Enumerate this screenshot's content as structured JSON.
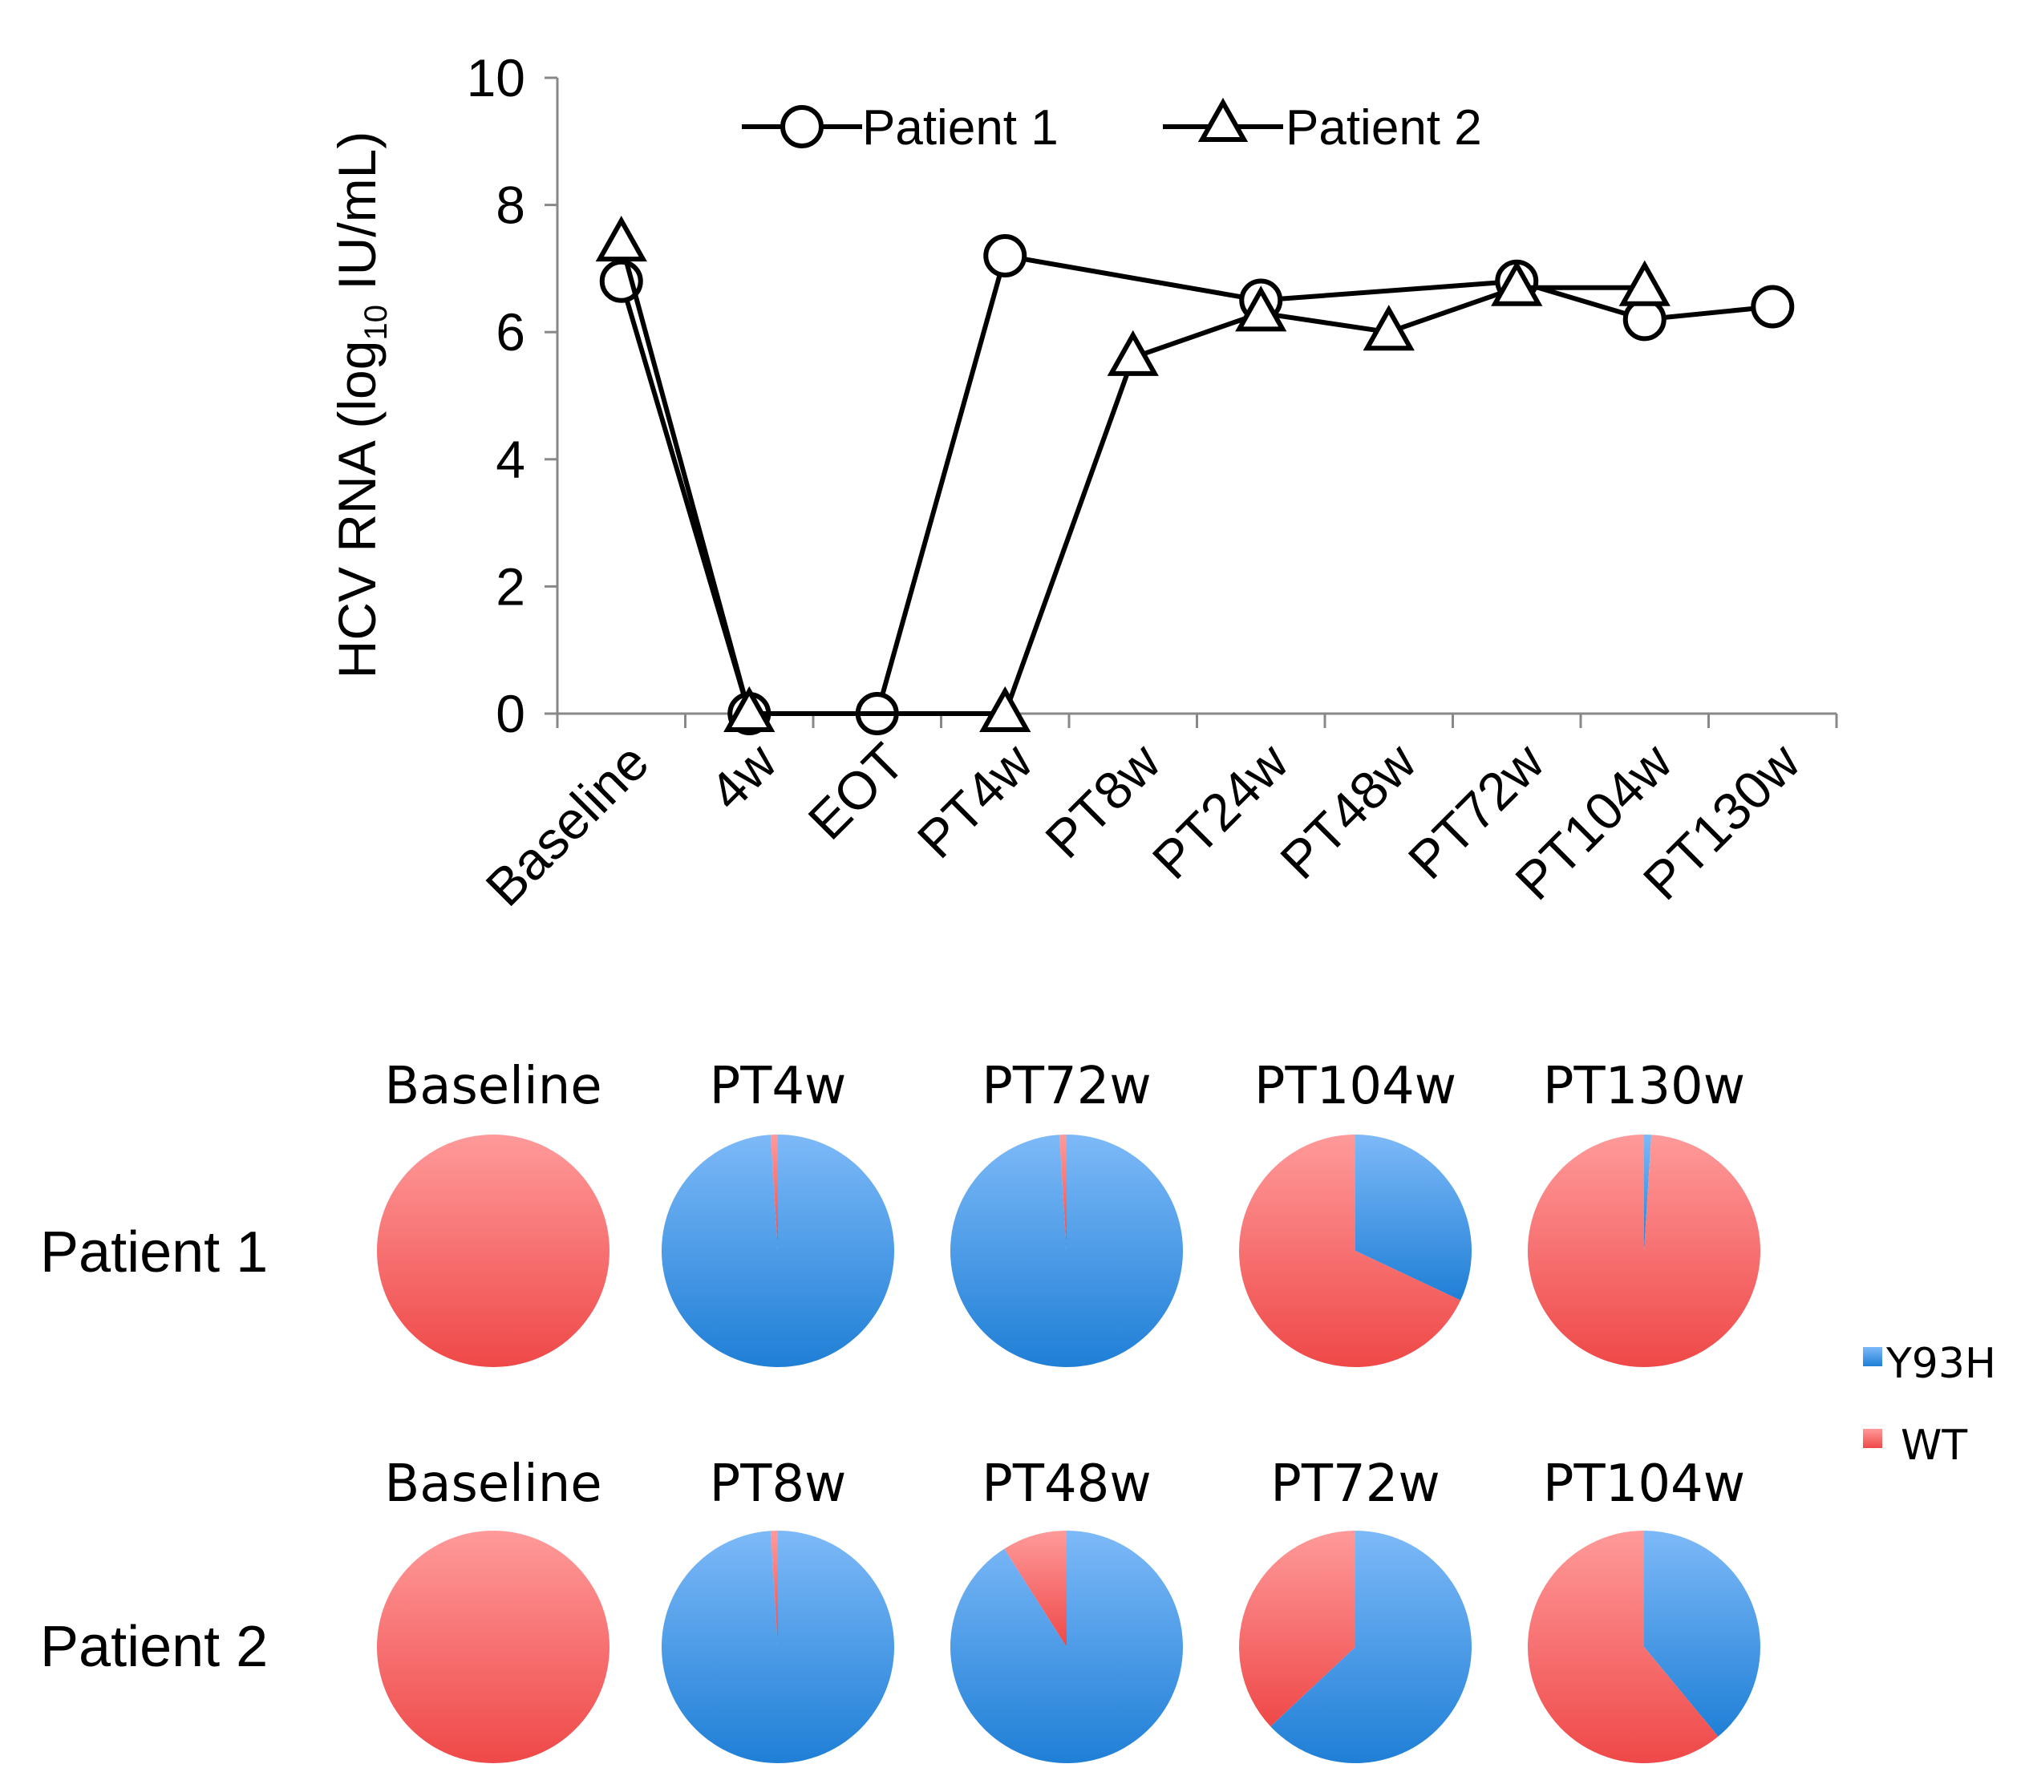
{
  "colors": {
    "y93h": "#4f9ff0",
    "y93h_light": "#7db9f8",
    "y93h_dark": "#1f7fd6",
    "wt": "#f46060",
    "wt_light": "#ff9a9a",
    "wt_dark": "#ef4848",
    "line": "#000000"
  },
  "chart_data": [
    {
      "type": "line",
      "ylabel_main": "HCV RNA (log",
      "ylabel_sub": "10",
      "ylabel_tail": " IU/mL)",
      "ylim": [
        0,
        10
      ],
      "yticks": [
        "0",
        "2",
        "4",
        "6",
        "8",
        "10"
      ],
      "categories": [
        "Baseline",
        "4w",
        "EOT",
        "PT4w",
        "PT8w",
        "PT24w",
        "PT48w",
        "PT72w",
        "PT104w",
        "PT130w"
      ],
      "legend_position": "top",
      "series": [
        {
          "name": "Patient 1",
          "marker": "circle",
          "values": [
            6.8,
            0,
            0,
            7.2,
            null,
            6.5,
            null,
            6.8,
            6.2,
            6.4
          ]
        },
        {
          "name": "Patient 2",
          "marker": "triangle",
          "values": [
            7.4,
            0,
            null,
            0,
            5.6,
            6.3,
            6.0,
            6.7,
            6.7,
            null
          ]
        }
      ]
    },
    {
      "type": "pie",
      "row_label": "Patient 1",
      "legend": [
        "Y93H",
        "WT"
      ],
      "pies": [
        {
          "title": "Baseline",
          "y93h_pct": 0,
          "wt_pct": 100
        },
        {
          "title": "PT4w",
          "y93h_pct": 99,
          "wt_pct": 1
        },
        {
          "title": "PT72w",
          "y93h_pct": 99,
          "wt_pct": 1
        },
        {
          "title": "PT104w",
          "y93h_pct": 32,
          "wt_pct": 68
        },
        {
          "title": "PT130w",
          "y93h_pct": 1,
          "wt_pct": 99
        }
      ]
    },
    {
      "type": "pie",
      "row_label": "Patient 2",
      "legend": [
        "Y93H",
        "WT"
      ],
      "pies": [
        {
          "title": "Baseline",
          "y93h_pct": 0,
          "wt_pct": 100
        },
        {
          "title": "PT8w",
          "y93h_pct": 99,
          "wt_pct": 1
        },
        {
          "title": "PT48w",
          "y93h_pct": 91,
          "wt_pct": 9
        },
        {
          "title": "PT72w",
          "y93h_pct": 63,
          "wt_pct": 37
        },
        {
          "title": "PT104w",
          "y93h_pct": 39,
          "wt_pct": 61
        }
      ]
    }
  ]
}
